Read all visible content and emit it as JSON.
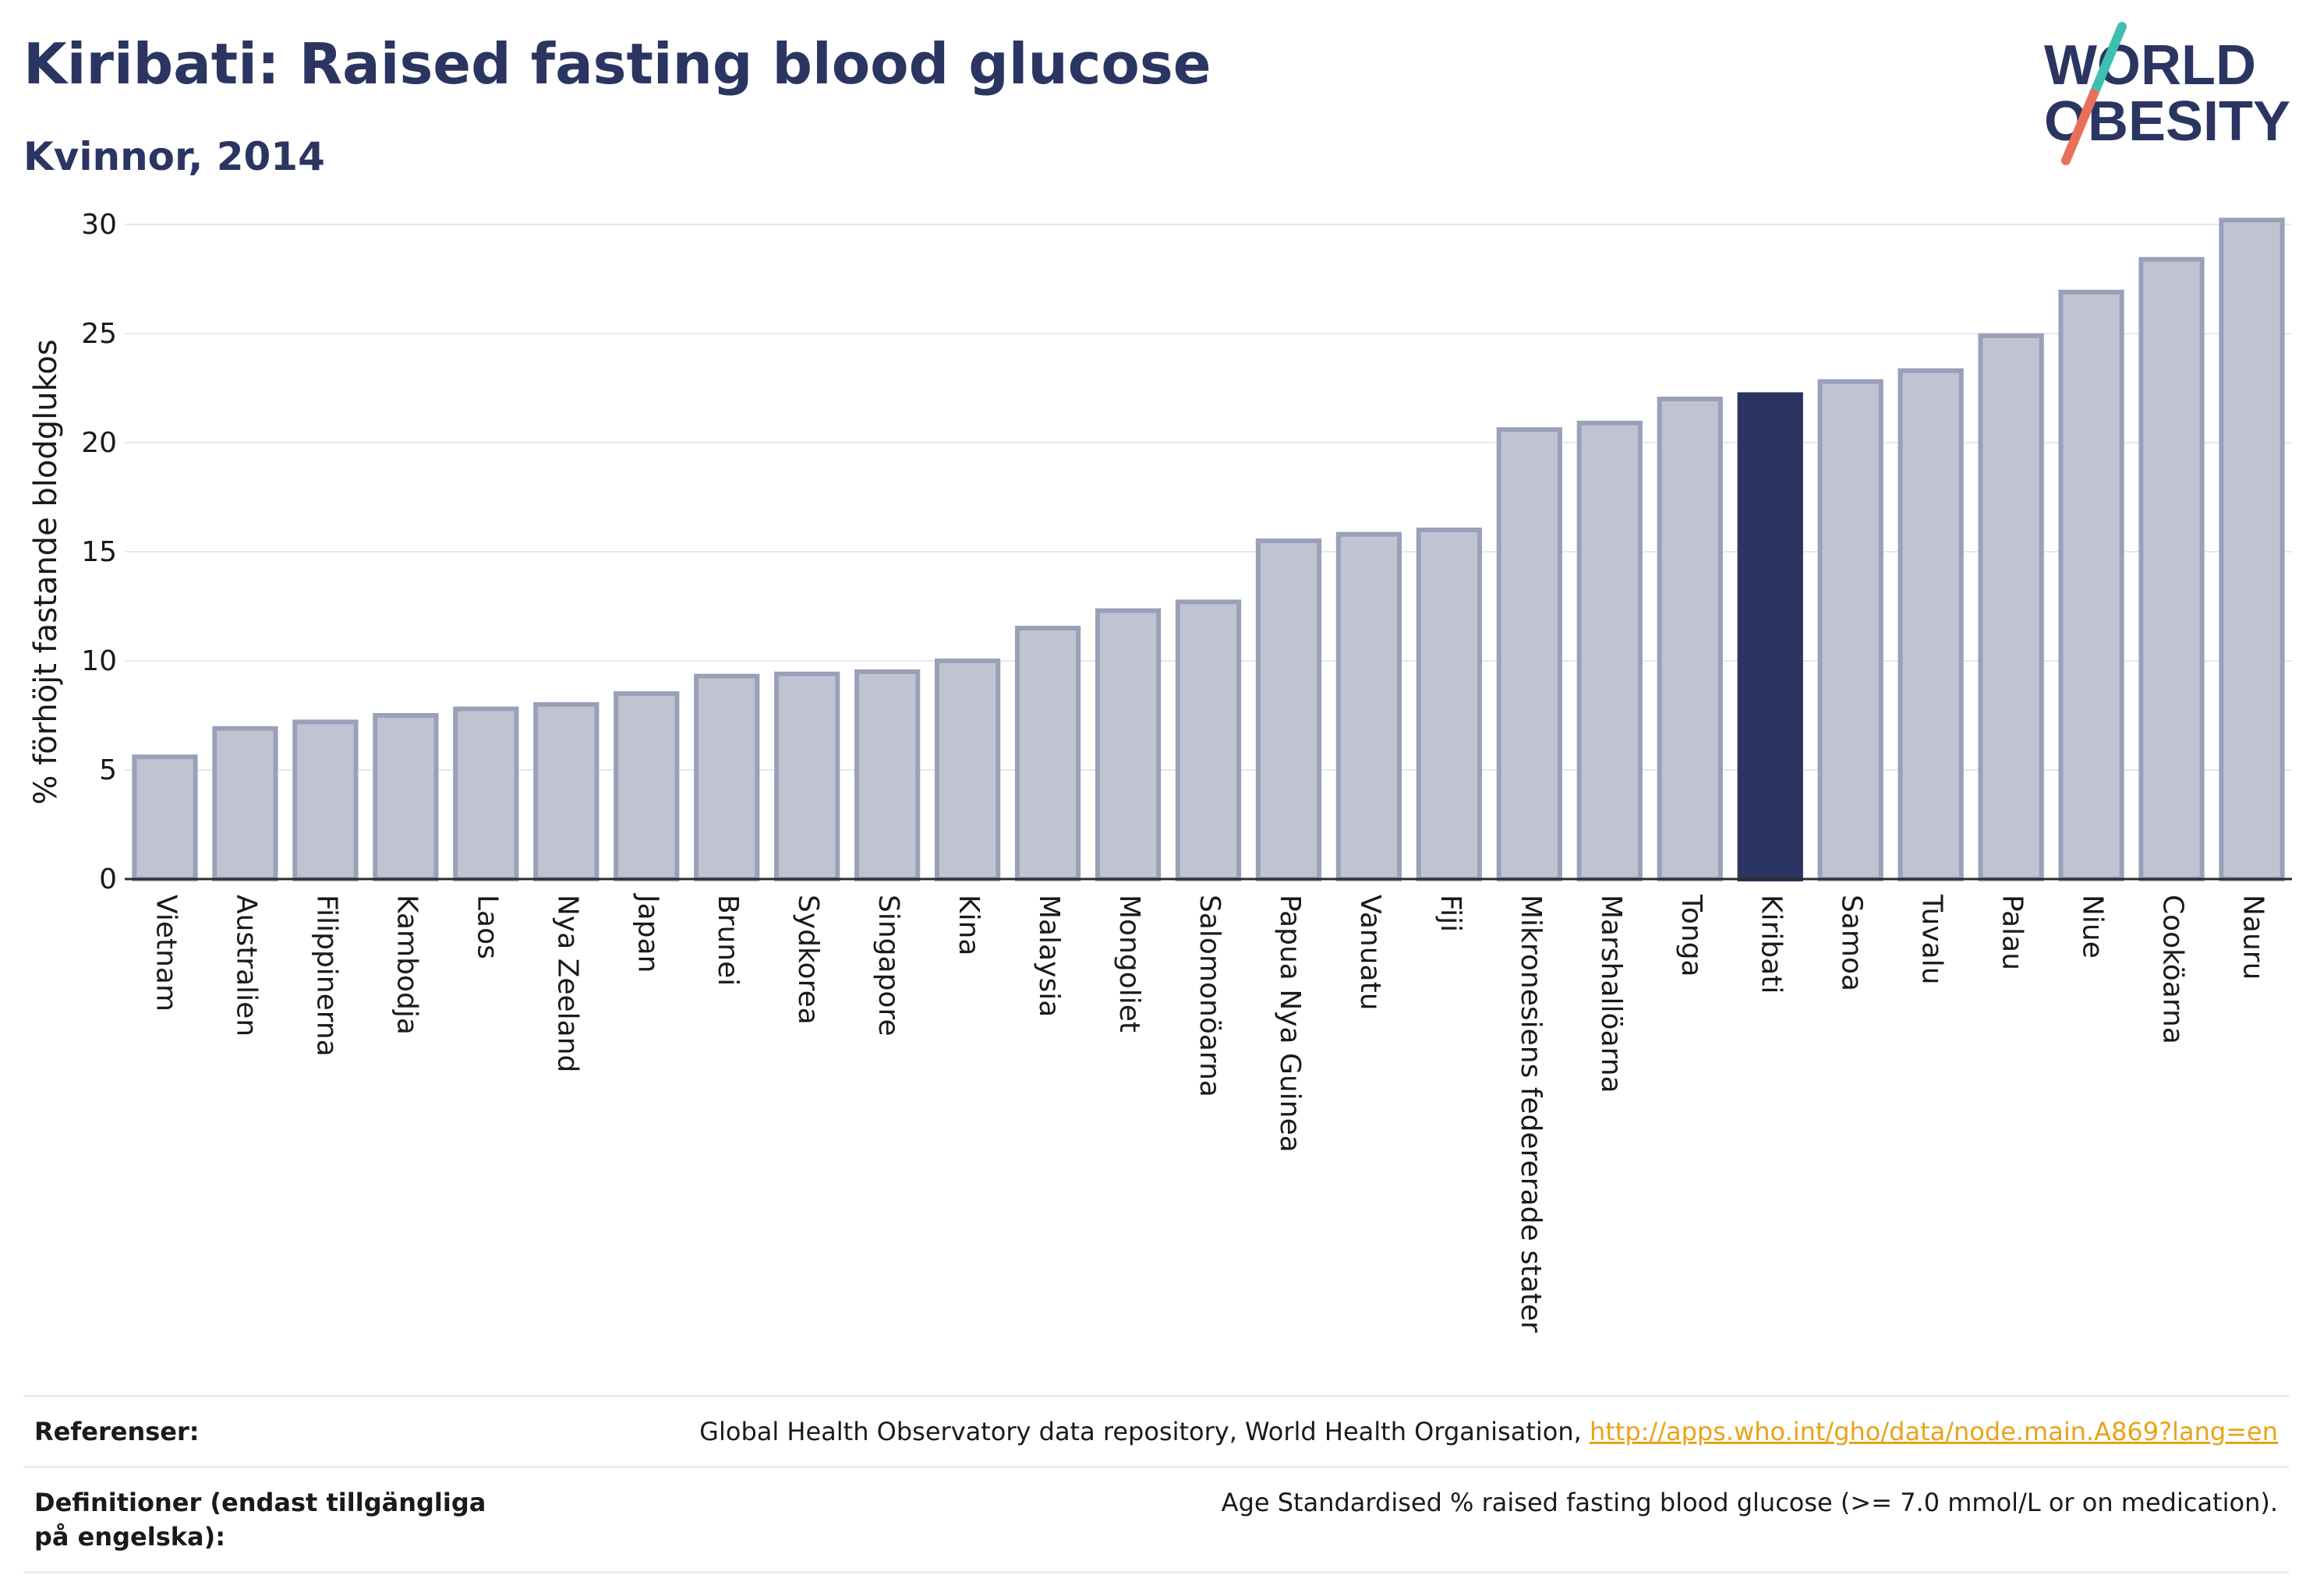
{
  "header": {
    "title": "Kiribati: Raised fasting blood glucose",
    "subtitle": "Kvinnor, 2014",
    "logo": {
      "line1": "WORLD",
      "line2": "OBESITY",
      "colors": {
        "text": "#2b3561",
        "slash_top": "#3fbfb0",
        "slash_bottom": "#e8705a"
      }
    }
  },
  "chart_data": {
    "type": "bar",
    "title": "Kiribati: Raised fasting blood glucose",
    "subtitle": "Kvinnor, 2014",
    "ylabel": "% förhöjt fastande blodglukos",
    "xlabel": "",
    "ylim": [
      0,
      31
    ],
    "yticks": [
      0,
      5,
      10,
      15,
      20,
      25,
      30
    ],
    "grid": true,
    "highlight": "Kiribati",
    "colors": {
      "bar": "#c0c4d2",
      "bar_edge": "#9aa0b8",
      "highlight": "#2b3561"
    },
    "categories": [
      "Vietnam",
      "Australien",
      "Filippinerna",
      "Kambodja",
      "Laos",
      "Nya Zeeland",
      "Japan",
      "Brunei",
      "Sydkorea",
      "Singapore",
      "Kina",
      "Malaysia",
      "Mongoliet",
      "Salomonöarna",
      "Papua Nya Guinea",
      "Vanuatu",
      "Fiji",
      "Mikronesiens federerade stater",
      "Marshallöarna",
      "Tonga",
      "Kiribati",
      "Samoa",
      "Tuvalu",
      "Palau",
      "Niue",
      "Cooköarna",
      "Nauru"
    ],
    "values": [
      5.6,
      6.9,
      7.2,
      7.5,
      7.8,
      8.0,
      8.5,
      9.3,
      9.4,
      9.5,
      10.0,
      11.5,
      12.3,
      12.7,
      15.5,
      15.8,
      16.0,
      20.6,
      20.9,
      22.0,
      22.2,
      22.8,
      23.3,
      24.9,
      26.9,
      28.4,
      30.2
    ]
  },
  "footer": {
    "references_label": "Referenser:",
    "references_text": "Global Health Observatory data repository, World Health Organisation, ",
    "references_link": "http://apps.who.int/gho/data/node.main.A869?lang=en",
    "definitions_label": "Definitioner (endast tillgängliga på engelska):",
    "definitions_text": "Age Standardised % raised fasting blood glucose (>= 7.0 mmol/L or on medication)."
  }
}
